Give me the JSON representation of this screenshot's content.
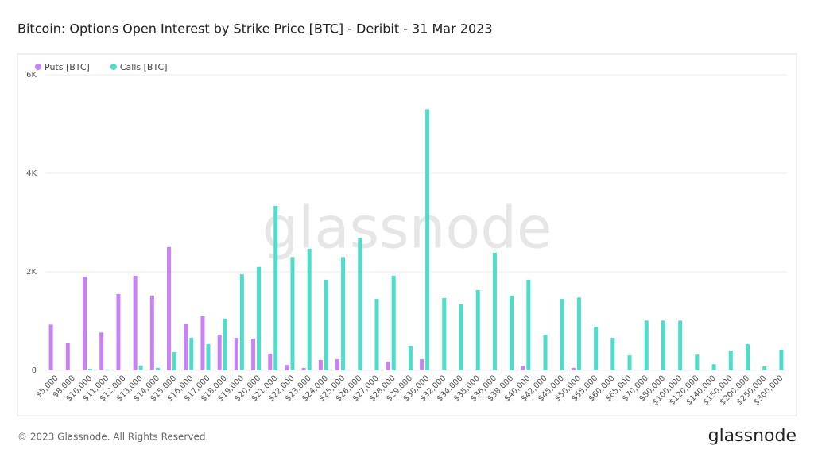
{
  "chart_data": {
    "type": "bar",
    "title": "Bitcoin: Options Open Interest by Strike Price [BTC] - Deribit - 31 Mar 2023",
    "watermark": "glassnode",
    "footer": "© 2023 Glassnode. All Rights Reserved.",
    "logo": "glassnode",
    "legend": "top-left",
    "grid": true,
    "categories": [
      "$5,000",
      "$8,000",
      "$10,000",
      "$11,000",
      "$12,000",
      "$13,000",
      "$14,000",
      "$15,000",
      "$16,000",
      "$17,000",
      "$18,000",
      "$19,000",
      "$20,000",
      "$21,000",
      "$22,000",
      "$23,000",
      "$24,000",
      "$25,000",
      "$26,000",
      "$27,000",
      "$28,000",
      "$29,000",
      "$30,000",
      "$32,000",
      "$34,000",
      "$35,000",
      "$36,000",
      "$38,000",
      "$40,000",
      "$42,000",
      "$45,000",
      "$50,000",
      "$55,000",
      "$60,000",
      "$65,000",
      "$70,000",
      "$80,000",
      "$100,000",
      "$120,000",
      "$140,000",
      "$150,000",
      "$200,000",
      "$250,000",
      "$300,000"
    ],
    "series": [
      {
        "name": "Puts [BTC]",
        "color": "#c981f7",
        "values": [
          930,
          550,
          1900,
          770,
          1550,
          1920,
          1520,
          2500,
          935,
          1100,
          725,
          660,
          645,
          340,
          110,
          50,
          210,
          225,
          0,
          0,
          175,
          0,
          225,
          0,
          0,
          0,
          0,
          0,
          90,
          0,
          0,
          50,
          0,
          0,
          0,
          0,
          0,
          0,
          0,
          0,
          0,
          0,
          0,
          0
        ]
      },
      {
        "name": "Calls [BTC]",
        "color": "#4fdccb",
        "values": [
          0,
          0,
          30,
          15,
          0,
          100,
          50,
          370,
          660,
          530,
          1050,
          1950,
          2100,
          3340,
          2300,
          2470,
          1840,
          2300,
          2690,
          1450,
          1920,
          500,
          5300,
          1470,
          1340,
          1630,
          2390,
          1520,
          1840,
          725,
          1450,
          1480,
          885,
          660,
          305,
          1010,
          1010,
          1010,
          320,
          125,
          400,
          530,
          80,
          420
        ]
      }
    ],
    "ylim": [
      0,
      6000
    ],
    "yticks": [
      0,
      {
        "value": 2000,
        "label": "2K"
      },
      {
        "value": 4000,
        "label": "4K"
      },
      {
        "value": 6000,
        "label": "6K"
      }
    ]
  }
}
